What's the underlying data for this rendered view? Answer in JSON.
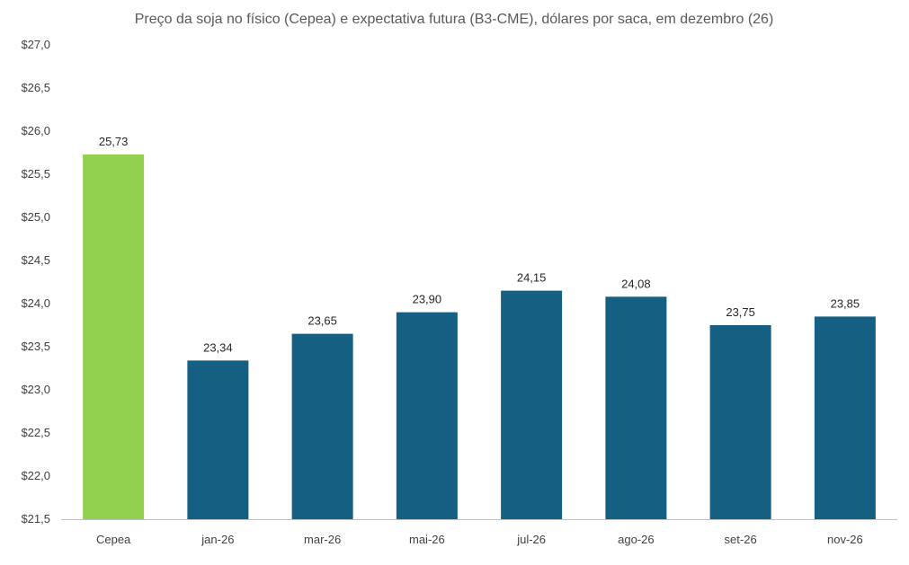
{
  "chart_data": {
    "type": "bar",
    "title": "Preço da soja no físico (Cepea) e expectativa futura (B3-CME), dólares por saca, em dezembro (26)",
    "xlabel": "",
    "ylabel": "",
    "categories": [
      "Cepea",
      "jan-26",
      "mar-26",
      "mai-26",
      "jul-26",
      "ago-26",
      "set-26",
      "nov-26"
    ],
    "values": [
      25.73,
      23.34,
      23.65,
      23.9,
      24.15,
      24.08,
      23.75,
      23.85
    ],
    "data_labels": [
      "25,73",
      "23,34",
      "23,65",
      "23,90",
      "24,15",
      "24,08",
      "23,75",
      "23,85"
    ],
    "ylim": [
      21.5,
      27.0
    ],
    "yticks": [
      21.5,
      22.0,
      22.5,
      23.0,
      23.5,
      24.0,
      24.5,
      25.0,
      25.5,
      26.0,
      26.5,
      27.0
    ],
    "ytick_labels": [
      "$21,5",
      "$22,0",
      "$22,5",
      "$23,0",
      "$23,5",
      "$24,0",
      "$24,5",
      "$25,0",
      "$25,5",
      "$26,0",
      "$26,5",
      "$27,0"
    ],
    "grid": false,
    "legend": "none",
    "colors": {
      "highlight": "#92d050",
      "bars": "#156082"
    }
  }
}
